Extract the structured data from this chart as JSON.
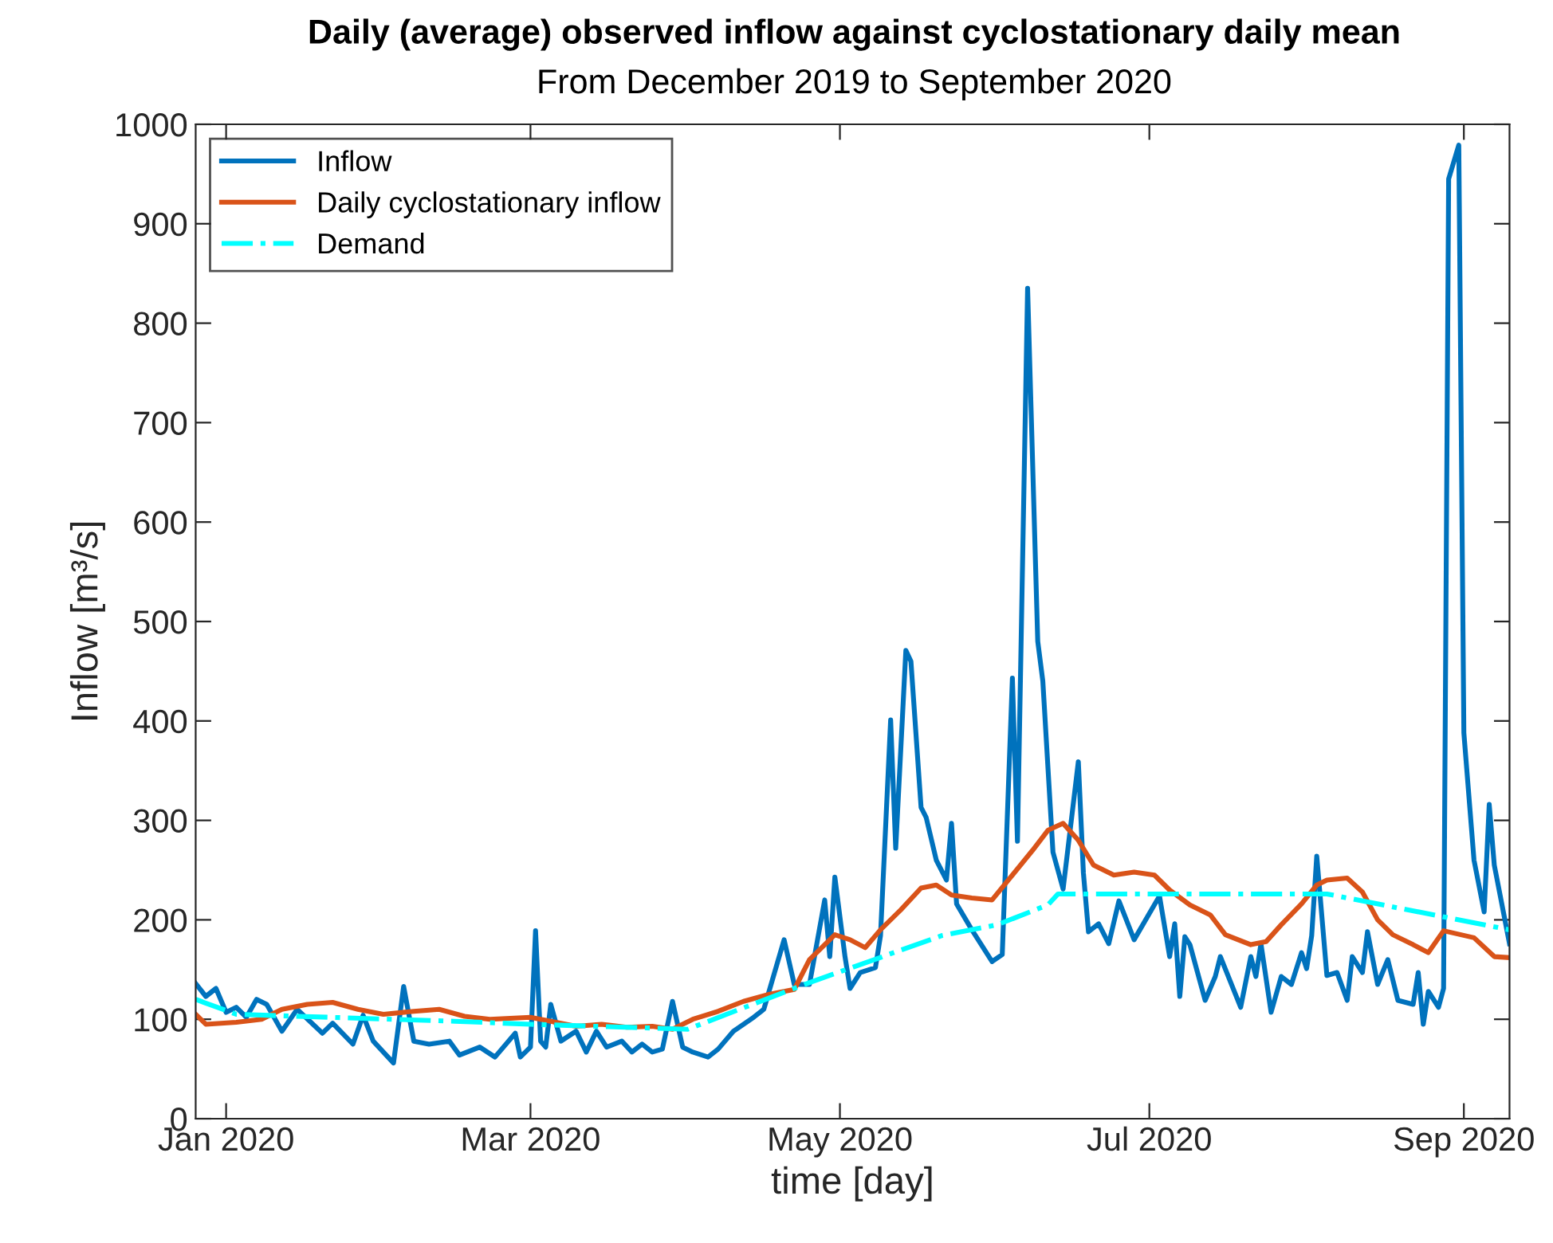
{
  "chart_data": {
    "type": "line",
    "title": "Daily (average) observed inflow against cyclostationary daily mean",
    "subtitle": "From December 2019 to September 2020",
    "xlabel": "time [day]",
    "ylabel": "Inflow [m³/s]",
    "xlim": [
      "2019-12-26",
      "2020-09-10"
    ],
    "xticks": [
      {
        "value": "2020-01-01",
        "label": "Jan 2020"
      },
      {
        "value": "2020-03-01",
        "label": "Mar 2020"
      },
      {
        "value": "2020-05-01",
        "label": "May 2020"
      },
      {
        "value": "2020-07-01",
        "label": "Jul 2020"
      },
      {
        "value": "2020-09-01",
        "label": "Sep 2020"
      }
    ],
    "ylim": [
      0,
      1000
    ],
    "yticks": [
      0,
      100,
      200,
      300,
      400,
      500,
      600,
      700,
      800,
      900,
      1000
    ],
    "grid": false,
    "legend": "top left",
    "marker": "none",
    "series": [
      {
        "name": "Inflow",
        "color": "#0072bd",
        "line_style": "solid",
        "x": [
          "2019-12-26",
          "2019-12-28",
          "2019-12-30",
          "2020-01-01",
          "2020-01-03",
          "2020-01-05",
          "2020-01-07",
          "2020-01-09",
          "2020-01-12",
          "2020-01-15",
          "2020-01-20",
          "2020-01-22",
          "2020-01-26",
          "2020-01-28",
          "2020-01-30",
          "2020-02-03",
          "2020-02-05",
          "2020-02-07",
          "2020-02-10",
          "2020-02-14",
          "2020-02-16",
          "2020-02-20",
          "2020-02-23",
          "2020-02-27",
          "2020-02-28",
          "2020-03-01",
          "2020-03-02",
          "2020-03-03",
          "2020-03-04",
          "2020-03-05",
          "2020-03-07",
          "2020-03-10",
          "2020-03-12",
          "2020-03-14",
          "2020-03-16",
          "2020-03-19",
          "2020-03-21",
          "2020-03-23",
          "2020-03-25",
          "2020-03-27",
          "2020-03-29",
          "2020-03-31",
          "2020-04-02",
          "2020-04-05",
          "2020-04-07",
          "2020-04-10",
          "2020-04-14",
          "2020-04-16",
          "2020-04-20",
          "2020-04-22",
          "2020-04-25",
          "2020-04-28",
          "2020-04-29",
          "2020-04-30",
          "2020-05-02",
          "2020-05-03",
          "2020-05-05",
          "2020-05-08",
          "2020-05-09",
          "2020-05-11",
          "2020-05-12",
          "2020-05-14",
          "2020-05-15",
          "2020-05-17",
          "2020-05-18",
          "2020-05-20",
          "2020-05-22",
          "2020-05-23",
          "2020-05-24",
          "2020-05-27",
          "2020-05-31",
          "2020-06-02",
          "2020-06-04",
          "2020-06-05",
          "2020-06-07",
          "2020-06-09",
          "2020-06-10",
          "2020-06-12",
          "2020-06-14",
          "2020-06-17",
          "2020-06-18",
          "2020-06-19",
          "2020-06-21",
          "2020-06-23",
          "2020-06-25",
          "2020-06-28",
          "2020-07-03",
          "2020-07-05",
          "2020-07-06",
          "2020-07-07",
          "2020-07-08",
          "2020-07-09",
          "2020-07-12",
          "2020-07-14",
          "2020-07-15",
          "2020-07-19",
          "2020-07-21",
          "2020-07-22",
          "2020-07-23",
          "2020-07-25",
          "2020-07-27",
          "2020-07-29",
          "2020-07-31",
          "2020-08-01",
          "2020-08-02",
          "2020-08-03",
          "2020-08-05",
          "2020-08-07",
          "2020-08-09",
          "2020-08-10",
          "2020-08-12",
          "2020-08-13",
          "2020-08-15",
          "2020-08-17",
          "2020-08-19",
          "2020-08-22",
          "2020-08-23",
          "2020-08-24",
          "2020-08-25",
          "2020-08-27",
          "2020-08-28",
          "2020-08-29",
          "2020-08-31",
          "2020-09-01",
          "2020-09-03",
          "2020-09-05",
          "2020-09-06",
          "2020-09-07",
          "2020-09-10"
        ],
        "values": [
          136,
          123,
          131,
          107,
          112,
          102,
          120,
          115,
          88,
          110,
          86,
          96,
          75,
          104,
          78,
          56,
          133,
          78,
          75,
          78,
          64,
          72,
          62,
          86,
          62,
          72,
          189,
          78,
          72,
          115,
          78,
          88,
          67,
          88,
          72,
          78,
          67,
          75,
          67,
          70,
          118,
          72,
          67,
          62,
          70,
          88,
          102,
          110,
          180,
          135,
          135,
          220,
          163,
          243,
          163,
          131,
          147,
          152,
          184,
          401,
          272,
          471,
          460,
          313,
          303,
          260,
          240,
          297,
          216,
          190,
          158,
          165,
          443,
          279,
          835,
          480,
          440,
          268,
          231,
          359,
          247,
          188,
          196,
          176,
          219,
          180,
          224,
          163,
          196,
          123,
          183,
          175,
          119,
          143,
          163,
          112,
          163,
          143,
          176,
          107,
          143,
          135,
          167,
          151,
          184,
          264,
          144,
          147,
          119,
          163,
          147,
          188,
          135,
          160,
          119,
          115,
          147,
          95,
          128,
          112,
          131,
          945,
          979,
          388,
          260,
          208,
          316,
          255,
          176
        ]
      },
      {
        "name": "Daily cyclostationary inflow",
        "color": "#d95319",
        "line_style": "solid",
        "x": [
          "2019-12-26",
          "2019-12-28",
          "2020-01-03",
          "2020-01-08",
          "2020-01-12",
          "2020-01-17",
          "2020-01-22",
          "2020-01-27",
          "2020-02-01",
          "2020-02-07",
          "2020-02-12",
          "2020-02-17",
          "2020-02-22",
          "2020-03-01",
          "2020-03-05",
          "2020-03-10",
          "2020-03-15",
          "2020-03-20",
          "2020-03-25",
          "2020-03-29",
          "2020-04-02",
          "2020-04-07",
          "2020-04-12",
          "2020-04-17",
          "2020-04-22",
          "2020-04-25",
          "2020-04-30",
          "2020-05-03",
          "2020-05-06",
          "2020-05-09",
          "2020-05-13",
          "2020-05-17",
          "2020-05-20",
          "2020-05-23",
          "2020-05-27",
          "2020-05-31",
          "2020-06-04",
          "2020-06-08",
          "2020-06-11",
          "2020-06-14",
          "2020-06-17",
          "2020-06-20",
          "2020-06-24",
          "2020-06-28",
          "2020-07-02",
          "2020-07-05",
          "2020-07-09",
          "2020-07-13",
          "2020-07-16",
          "2020-07-21",
          "2020-07-24",
          "2020-07-27",
          "2020-07-31",
          "2020-08-03",
          "2020-08-05",
          "2020-08-09",
          "2020-08-12",
          "2020-08-15",
          "2020-08-18",
          "2020-08-22",
          "2020-08-25",
          "2020-08-28",
          "2020-09-03",
          "2020-09-07",
          "2020-09-10"
        ],
        "values": [
          105,
          95,
          97,
          100,
          110,
          115,
          117,
          110,
          105,
          108,
          110,
          103,
          100,
          102,
          98,
          93,
          95,
          92,
          93,
          90,
          100,
          108,
          118,
          125,
          130,
          160,
          185,
          180,
          172,
          190,
          210,
          232,
          235,
          225,
          222,
          220,
          245,
          270,
          290,
          297,
          280,
          255,
          245,
          248,
          245,
          230,
          215,
          205,
          185,
          175,
          178,
          195,
          216,
          235,
          240,
          242,
          228,
          200,
          185,
          175,
          167,
          189,
          182,
          163,
          162
        ]
      },
      {
        "name": "Demand",
        "color": "#00ffff",
        "line_style": "dashdot",
        "x": [
          "2019-12-26",
          "2020-01-03",
          "2020-01-15",
          "2020-02-15",
          "2020-03-01",
          "2020-04-01",
          "2020-04-24",
          "2020-05-21",
          "2020-06-01",
          "2020-06-11",
          "2020-06-13",
          "2020-08-05",
          "2020-09-10"
        ],
        "values": [
          120,
          105,
          103,
          98,
          95,
          90,
          135,
          184,
          195,
          215,
          226,
          226,
          190
        ]
      }
    ]
  }
}
